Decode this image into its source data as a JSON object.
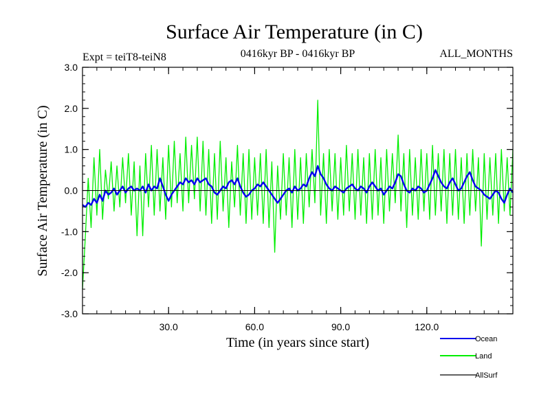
{
  "chart_data": {
    "type": "line",
    "title": "Surface Air Temperature (in C)",
    "subtitle_left": "Expt = teiT8-teiN8",
    "subtitle_center": "0416kyr BP - 0416kyr BP",
    "subtitle_right": "ALL_MONTHS",
    "xlabel": "Time (in years since start)",
    "ylabel": "Surface Air Temperature (in C)",
    "xlim": [
      0,
      150
    ],
    "ylim": [
      -3.0,
      3.0
    ],
    "xticks": [
      30,
      60,
      90,
      120
    ],
    "xtick_labels": [
      "30.0",
      "60.0",
      "90.0",
      "120.0"
    ],
    "yticks": [
      -3,
      -2,
      -1,
      0,
      1,
      2,
      3
    ],
    "ytick_labels": [
      "-3.0",
      "-2.0",
      "-1.0",
      "0.0",
      "1.0",
      "2.0",
      "3.0"
    ],
    "zero_line": true,
    "series": [
      {
        "name": "Land",
        "color": "#00ee00",
        "x": [
          0,
          1,
          2,
          3,
          4,
          5,
          6,
          7,
          8,
          9,
          10,
          11,
          12,
          13,
          14,
          15,
          16,
          17,
          18,
          19,
          20,
          21,
          22,
          23,
          24,
          25,
          26,
          27,
          28,
          29,
          30,
          31,
          32,
          33,
          34,
          35,
          36,
          37,
          38,
          39,
          40,
          41,
          42,
          43,
          44,
          45,
          46,
          47,
          48,
          49,
          50,
          51,
          52,
          53,
          54,
          55,
          56,
          57,
          58,
          59,
          60,
          61,
          62,
          63,
          64,
          65,
          66,
          67,
          68,
          69,
          70,
          71,
          72,
          73,
          74,
          75,
          76,
          77,
          78,
          79,
          80,
          81,
          82,
          83,
          84,
          85,
          86,
          87,
          88,
          89,
          90,
          91,
          92,
          93,
          94,
          95,
          96,
          97,
          98,
          99,
          100,
          101,
          102,
          103,
          104,
          105,
          106,
          107,
          108,
          109,
          110,
          111,
          112,
          113,
          114,
          115,
          116,
          117,
          118,
          119,
          120,
          121,
          122,
          123,
          124,
          125,
          126,
          127,
          128,
          129,
          130,
          131,
          132,
          133,
          134,
          135,
          136,
          137,
          138,
          139,
          140,
          141,
          142,
          143,
          144,
          145,
          146,
          147,
          148,
          149,
          150
        ],
        "values": [
          -2.4,
          -1.1,
          0.3,
          -0.9,
          0.8,
          -0.6,
          1.0,
          -0.7,
          0.5,
          -0.2,
          0.7,
          -0.5,
          0.6,
          -0.4,
          0.8,
          -0.3,
          0.9,
          -0.6,
          0.7,
          -1.1,
          0.6,
          -1.1,
          0.9,
          -0.4,
          1.1,
          -0.6,
          1.0,
          -0.5,
          0.8,
          -0.7,
          1.1,
          -0.4,
          1.2,
          -0.3,
          0.9,
          -0.5,
          1.3,
          -0.3,
          1.1,
          -0.2,
          1.3,
          -0.5,
          1.2,
          -0.6,
          1.0,
          -0.8,
          0.9,
          -0.7,
          1.2,
          -0.5,
          0.8,
          -0.9,
          0.7,
          -0.4,
          1.1,
          -0.6,
          0.9,
          -0.8,
          1.0,
          -0.7,
          0.8,
          -0.6,
          0.9,
          -0.8,
          1.0,
          -0.9,
          0.7,
          -1.5,
          0.6,
          -0.7,
          0.9,
          -0.6,
          0.8,
          -0.9,
          1.0,
          -0.7,
          0.8,
          -0.8,
          0.9,
          -0.4,
          1.0,
          -0.3,
          2.2,
          -0.6,
          0.9,
          -0.8,
          1.0,
          -0.5,
          0.9,
          -0.7,
          0.8,
          -0.6,
          1.1,
          -0.5,
          0.9,
          -0.7,
          1.0,
          -0.6,
          0.8,
          -0.8,
          0.9,
          -0.7,
          1.0,
          -0.6,
          0.8,
          -0.8,
          1.0,
          -0.5,
          0.9,
          -0.3,
          1.35,
          -0.5,
          0.9,
          -0.9,
          1.0,
          -0.6,
          0.8,
          -0.7,
          1.0,
          -0.5,
          0.9,
          -0.7,
          1.1,
          -0.6,
          0.9,
          -0.5,
          1.0,
          -0.8,
          0.9,
          -0.6,
          1.0,
          -0.7,
          0.8,
          -0.8,
          0.9,
          -0.6,
          1.0,
          -0.5,
          0.8,
          -1.35,
          0.9,
          -0.7,
          0.8,
          -0.6,
          0.9,
          -0.8,
          1.0,
          -0.5,
          0.8,
          -0.6,
          1.0
        ]
      },
      {
        "name": "Ocean",
        "color": "#0000ee",
        "x": [
          0,
          1,
          2,
          3,
          4,
          5,
          6,
          7,
          8,
          9,
          10,
          11,
          12,
          13,
          14,
          15,
          16,
          17,
          18,
          19,
          20,
          21,
          22,
          23,
          24,
          25,
          26,
          27,
          28,
          29,
          30,
          31,
          32,
          33,
          34,
          35,
          36,
          37,
          38,
          39,
          40,
          41,
          42,
          43,
          44,
          45,
          46,
          47,
          48,
          49,
          50,
          51,
          52,
          53,
          54,
          55,
          56,
          57,
          58,
          59,
          60,
          61,
          62,
          63,
          64,
          65,
          66,
          67,
          68,
          69,
          70,
          71,
          72,
          73,
          74,
          75,
          76,
          77,
          78,
          79,
          80,
          81,
          82,
          83,
          84,
          85,
          86,
          87,
          88,
          89,
          90,
          91,
          92,
          93,
          94,
          95,
          96,
          97,
          98,
          99,
          100,
          101,
          102,
          103,
          104,
          105,
          106,
          107,
          108,
          109,
          110,
          111,
          112,
          113,
          114,
          115,
          116,
          117,
          118,
          119,
          120,
          121,
          122,
          123,
          124,
          125,
          126,
          127,
          128,
          129,
          130,
          131,
          132,
          133,
          134,
          135,
          136,
          137,
          138,
          139,
          140,
          141,
          142,
          143,
          144,
          145,
          146,
          147,
          148,
          149,
          150
        ],
        "values": [
          -0.35,
          -0.4,
          -0.3,
          -0.35,
          -0.2,
          -0.3,
          -0.1,
          -0.25,
          0.0,
          -0.1,
          -0.05,
          0.05,
          -0.1,
          0.0,
          0.1,
          -0.05,
          0.05,
          0.1,
          0.0,
          0.05,
          0.0,
          0.1,
          -0.05,
          0.15,
          0.0,
          0.1,
          0.05,
          0.3,
          0.1,
          -0.1,
          -0.25,
          -0.1,
          0.0,
          0.1,
          0.2,
          0.15,
          0.3,
          0.2,
          0.25,
          0.15,
          0.3,
          0.2,
          0.25,
          0.3,
          0.15,
          0.1,
          -0.05,
          -0.1,
          0.0,
          0.1,
          0.05,
          0.2,
          0.25,
          0.15,
          0.3,
          0.1,
          -0.05,
          -0.15,
          -0.1,
          0.0,
          0.05,
          0.15,
          0.1,
          0.2,
          0.1,
          0.0,
          -0.1,
          -0.2,
          -0.3,
          -0.2,
          -0.1,
          0.0,
          0.05,
          -0.05,
          0.1,
          0.0,
          0.05,
          0.15,
          0.1,
          0.3,
          0.45,
          0.35,
          0.6,
          0.4,
          0.3,
          0.15,
          0.05,
          0.0,
          0.1,
          0.05,
          0.0,
          -0.05,
          0.05,
          0.1,
          0.15,
          0.05,
          0.0,
          0.1,
          0.05,
          -0.05,
          0.1,
          0.2,
          0.1,
          0.0,
          0.05,
          -0.1,
          0.0,
          0.1,
          0.05,
          0.2,
          0.4,
          0.35,
          0.15,
          0.0,
          -0.05,
          0.05,
          0.0,
          0.1,
          0.05,
          -0.05,
          0.0,
          0.15,
          0.3,
          0.5,
          0.35,
          0.2,
          0.1,
          0.05,
          0.2,
          0.3,
          0.15,
          0.0,
          0.05,
          0.2,
          0.35,
          0.45,
          0.25,
          0.1,
          0.05,
          0.0,
          -0.1,
          -0.15,
          -0.2,
          -0.1,
          0.0,
          -0.05,
          -0.2,
          -0.3,
          -0.1,
          0.05,
          -0.05
        ]
      },
      {
        "name": "AllSurf",
        "color": "#000000",
        "x": [],
        "values": []
      }
    ],
    "legend": [
      {
        "name": "Ocean",
        "color": "#0000ee"
      },
      {
        "name": "Land",
        "color": "#00ee00"
      },
      {
        "name": "AllSurf",
        "color": "#000000"
      }
    ],
    "legend_position": "bottom-right"
  }
}
